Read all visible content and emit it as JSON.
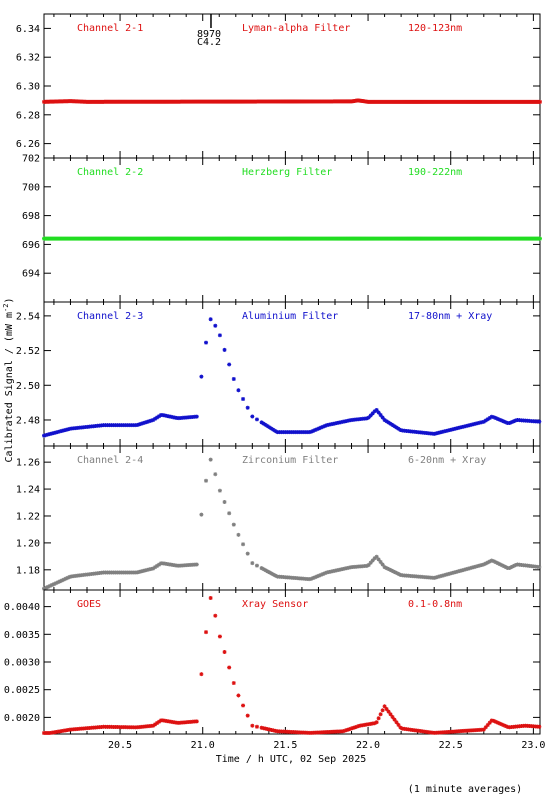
{
  "chart_data": {
    "type": "scatter",
    "xlabel": "Time / h UTC, 02 Sep 2025",
    "ylabel": "Calibrated Signal / (mW m",
    "ylabel_sup": "-2",
    "ylabel_close": ")",
    "footnote": "(1 minute averages)",
    "xlim": [
      20.04,
      23.04
    ],
    "xticks": [
      20.5,
      21.0,
      21.5,
      22.0,
      22.5,
      23.0
    ],
    "xtick_labels": [
      "20.5",
      "21.0",
      "21.5",
      "22.0",
      "22.5",
      "23.0"
    ],
    "marker": "*",
    "panels": [
      {
        "id": "ch21",
        "channel": "Channel 2-1",
        "filter": "Lyman-alpha Filter",
        "band": "120-123nm",
        "color": "#dd1111",
        "ylim": [
          6.25,
          6.35
        ],
        "yticks": [
          6.26,
          6.28,
          6.3,
          6.32,
          6.34
        ],
        "ytick_labels": [
          "6.26",
          "6.28",
          "6.30",
          "6.32",
          "6.34"
        ],
        "flare_marker": {
          "x": 21.05,
          "label_line1": "8970",
          "label_line2": "C4.2"
        },
        "profile": "flat",
        "x": [
          20.04,
          20.2,
          20.3,
          21.9,
          21.94,
          22.0,
          23.04
        ],
        "y": [
          6.289,
          6.2895,
          6.289,
          6.2893,
          6.29,
          6.289,
          6.289
        ]
      },
      {
        "id": "ch22",
        "channel": "Channel 2-2",
        "filter": "Herzberg Filter",
        "band": "190-222nm",
        "color": "#22dd22",
        "ylim": [
          692,
          702
        ],
        "yticks": [
          694,
          696,
          698,
          700,
          702
        ],
        "ytick_labels": [
          "694",
          "696",
          "698",
          "700",
          "702"
        ],
        "profile": "flat",
        "x": [
          20.04,
          23.04
        ],
        "y": [
          696.4,
          696.4
        ]
      },
      {
        "id": "ch23",
        "channel": "Channel 2-3",
        "filter": "Aluminium Filter",
        "band": "17-80nm + Xray",
        "color": "#1111cc",
        "ylim": [
          2.465,
          2.548
        ],
        "yticks": [
          2.48,
          2.5,
          2.52,
          2.54
        ],
        "ytick_labels": [
          "2.48",
          "2.50",
          "2.52",
          "2.54"
        ],
        "profile": "euv",
        "x": [
          20.04,
          20.2,
          20.4,
          20.6,
          20.7,
          20.75,
          20.85,
          20.97,
          20.98,
          21.0,
          21.05,
          21.1,
          21.2,
          21.3,
          21.45,
          21.65,
          21.75,
          21.9,
          22.0,
          22.05,
          22.1,
          22.2,
          22.4,
          22.7,
          22.75,
          22.85,
          22.9,
          23.04
        ],
        "y": [
          2.471,
          2.475,
          2.477,
          2.477,
          2.48,
          2.483,
          2.481,
          2.482,
          2.49,
          2.515,
          2.539,
          2.53,
          2.5,
          2.482,
          2.473,
          2.473,
          2.477,
          2.48,
          2.481,
          2.486,
          2.48,
          2.474,
          2.472,
          2.479,
          2.482,
          2.478,
          2.48,
          2.479
        ]
      },
      {
        "id": "ch24",
        "channel": "Channel 2-4",
        "filter": "Zirconium Filter",
        "band": "6-20nm + Xray",
        "color": "#808080",
        "ylim": [
          1.165,
          1.272
        ],
        "yticks": [
          1.18,
          1.2,
          1.22,
          1.24,
          1.26
        ],
        "ytick_labels": [
          "1.18",
          "1.20",
          "1.22",
          "1.24",
          "1.26"
        ],
        "profile": "euv",
        "x": [
          20.04,
          20.2,
          20.4,
          20.6,
          20.7,
          20.75,
          20.85,
          20.97,
          20.98,
          21.0,
          21.05,
          21.1,
          21.2,
          21.3,
          21.45,
          21.65,
          21.75,
          21.9,
          22.0,
          22.05,
          22.1,
          22.2,
          22.4,
          22.7,
          22.75,
          22.85,
          22.9,
          23.04
        ],
        "y": [
          1.166,
          1.175,
          1.178,
          1.178,
          1.181,
          1.185,
          1.183,
          1.184,
          1.2,
          1.235,
          1.263,
          1.24,
          1.21,
          1.185,
          1.175,
          1.173,
          1.178,
          1.182,
          1.183,
          1.19,
          1.182,
          1.176,
          1.174,
          1.184,
          1.187,
          1.181,
          1.184,
          1.182
        ]
      },
      {
        "id": "goes",
        "channel": "GOES",
        "filter": "Xray Sensor",
        "band": "0.1-0.8nm",
        "color": "#dd1111",
        "ylim": [
          0.0017,
          0.0043
        ],
        "yticks": [
          0.002,
          0.0025,
          0.003,
          0.0035,
          0.004
        ],
        "ytick_labels": [
          "0.0020",
          "0.0025",
          "0.0030",
          "0.0035",
          "0.0040"
        ],
        "profile": "xray",
        "x": [
          20.04,
          20.2,
          20.4,
          20.6,
          20.7,
          20.75,
          20.85,
          20.97,
          20.98,
          21.0,
          21.05,
          21.1,
          21.2,
          21.3,
          21.45,
          21.65,
          21.85,
          21.95,
          22.05,
          22.1,
          22.2,
          22.4,
          22.7,
          22.75,
          22.85,
          22.95,
          23.04
        ],
        "y": [
          0.0017,
          0.00178,
          0.00183,
          0.00182,
          0.00185,
          0.00195,
          0.0019,
          0.00193,
          0.0023,
          0.0031,
          0.0042,
          0.0035,
          0.0025,
          0.00185,
          0.00175,
          0.00172,
          0.00175,
          0.00185,
          0.0019,
          0.0022,
          0.0018,
          0.00172,
          0.00178,
          0.00195,
          0.00182,
          0.00185,
          0.00183
        ]
      }
    ]
  }
}
